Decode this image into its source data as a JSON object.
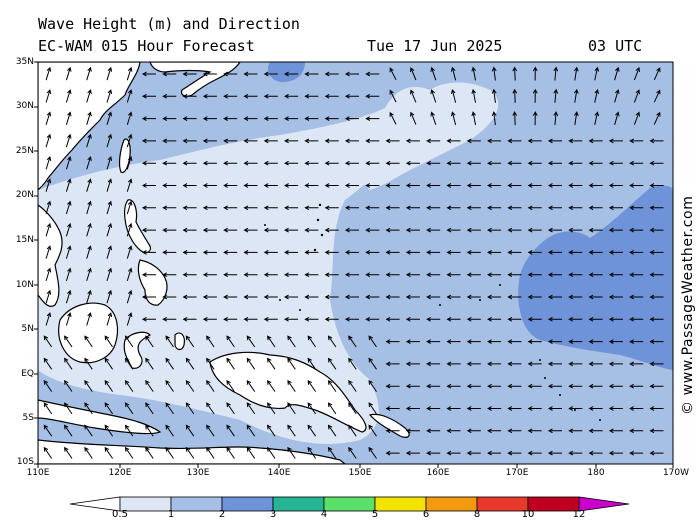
{
  "header": {
    "title": "Wave Height (m) and Direction",
    "model": "EC-WAM 015 Hour Forecast",
    "date": "Tue 17 Jun 2025",
    "time": "03 UTC"
  },
  "credit": "© www.PassageWeather.com",
  "axes": {
    "lat_labels": [
      "35N",
      "30N",
      "25N",
      "20N",
      "15N",
      "10N",
      "5N",
      "EQ",
      "5S",
      "10S"
    ],
    "lon_labels": [
      "110E",
      "120E",
      "130E",
      "140E",
      "150E",
      "160E",
      "170E",
      "180",
      "170W"
    ]
  },
  "legend": {
    "tick_labels": [
      "0.5",
      "1",
      "2",
      "3",
      "4",
      "5",
      "6",
      "8",
      "10",
      "12"
    ],
    "colors": [
      "#ffffff",
      "#dde6f4",
      "#a6bfe4",
      "#6f93d8",
      "#26b592",
      "#5be06a",
      "#f2e400",
      "#f49a10",
      "#e83a2a",
      "#c00020",
      "#cc00cc"
    ]
  },
  "map_colors": {
    "sea_low": "#dde6f4",
    "sea_mid": "#a6bfe4",
    "sea_high": "#6f93d8",
    "land": "#ffffff",
    "coast": "#000000",
    "arrows": "#000000"
  }
}
